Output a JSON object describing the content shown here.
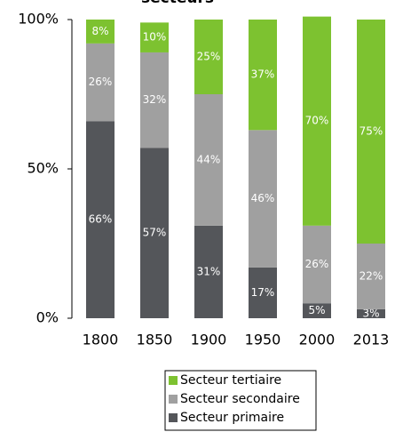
{
  "chart_data": {
    "type": "stacked-bar",
    "title": "secteurs",
    "categories": [
      "1800",
      "1850",
      "1900",
      "1950",
      "2000",
      "2013"
    ],
    "series": [
      {
        "name": "Secteur primaire",
        "color": "#54565a",
        "values": [
          66,
          57,
          31,
          17,
          5,
          3
        ],
        "value_labels": [
          "66%",
          "57%",
          "31%",
          "17%",
          "5%",
          "3%"
        ]
      },
      {
        "name": "Secteur secondaire",
        "color": "#a0a0a0",
        "values": [
          26,
          32,
          44,
          46,
          26,
          22
        ],
        "value_labels": [
          "26%",
          "32%",
          "44%",
          "46%",
          "26%",
          "22%"
        ]
      },
      {
        "name": "Secteur tertiaire",
        "color": "#7dc230",
        "values": [
          8,
          10,
          25,
          37,
          70,
          75
        ],
        "value_labels": [
          "8%",
          "10%",
          "25%",
          "37%",
          "70%",
          "75%"
        ]
      }
    ],
    "ylim": [
      0,
      100
    ],
    "yticks": [
      {
        "value": 0,
        "label": "0%"
      },
      {
        "value": 50,
        "label": "50%"
      },
      {
        "value": 100,
        "label": "100%"
      }
    ]
  }
}
